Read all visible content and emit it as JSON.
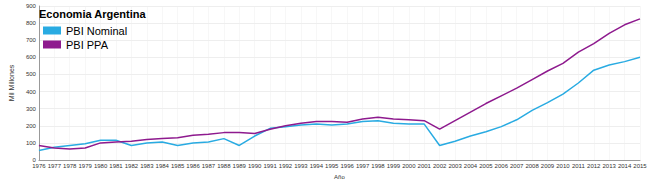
{
  "chart_data": {
    "type": "line",
    "title": "Economia Argentina",
    "x_label": "Año",
    "y_label": "Mil Millones",
    "categories": [
      "1976",
      "1977",
      "1978",
      "1979",
      "1980",
      "1981",
      "1982",
      "1983",
      "1984",
      "1985",
      "1986",
      "1987",
      "1988",
      "1989",
      "1990",
      "1991",
      "1992",
      "1993",
      "1994",
      "1995",
      "1996",
      "1997",
      "1998",
      "1999",
      "2000",
      "2001",
      "2002",
      "2003",
      "2004",
      "2005",
      "2006",
      "2007",
      "2008",
      "2009",
      "2010",
      "2011",
      "2012",
      "2013",
      "2014",
      "2015"
    ],
    "series": [
      {
        "name": "PBI Nominal",
        "color": "#29abe2",
        "values": [
          55,
          75,
          85,
          95,
          115,
          115,
          85,
          100,
          105,
          85,
          100,
          105,
          125,
          85,
          140,
          185,
          195,
          205,
          210,
          205,
          210,
          225,
          230,
          215,
          210,
          210,
          85,
          110,
          140,
          165,
          195,
          235,
          290,
          335,
          385,
          450,
          525,
          555,
          575,
          600
        ]
      },
      {
        "name": "PBI PPA",
        "color": "#8e1a8e",
        "values": [
          85,
          70,
          65,
          70,
          100,
          105,
          110,
          120,
          125,
          130,
          145,
          150,
          160,
          160,
          155,
          180,
          200,
          215,
          225,
          225,
          220,
          240,
          250,
          240,
          235,
          230,
          180,
          230,
          280,
          330,
          375,
          420,
          470,
          520,
          565,
          630,
          680,
          740,
          790,
          825
        ]
      }
    ],
    "ylim": [
      0,
      900
    ],
    "yticks": [
      0,
      100,
      200,
      300,
      400,
      500,
      600,
      700,
      800,
      900
    ],
    "grid": true,
    "legend": "top-left"
  }
}
